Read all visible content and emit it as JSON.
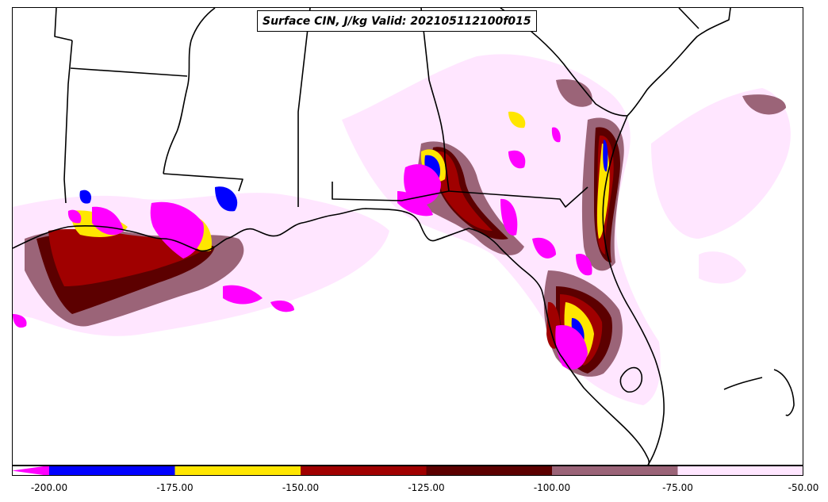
{
  "title": "Surface CIN, J/kg Valid: 202105112100f015",
  "colorbar": {
    "extend_min_color": "#ff00ff",
    "bins": [
      {
        "from": -200,
        "to": -175,
        "color": "#0000ff"
      },
      {
        "from": -175,
        "to": -150,
        "color": "#ffe600"
      },
      {
        "from": -150,
        "to": -125,
        "color": "#a00000"
      },
      {
        "from": -125,
        "to": -100,
        "color": "#5c0000"
      },
      {
        "from": -100,
        "to": -75,
        "color": "#9b6478"
      },
      {
        "from": -75,
        "to": -50,
        "color": "#ffe6ff"
      }
    ],
    "tick_labels": [
      "-200.00",
      "-175.00",
      "-150.00",
      "-125.00",
      "-100.00",
      "-75.00",
      "-50.00"
    ]
  },
  "field_colors": {
    "lightpink": "#ffe6ff",
    "mauve": "#9b6478",
    "darkred": "#5c0000",
    "red": "#a00000",
    "yellow": "#ffe600",
    "blue": "#0000ff",
    "magenta": "#ff00ff"
  },
  "boundary_color": "#000000"
}
